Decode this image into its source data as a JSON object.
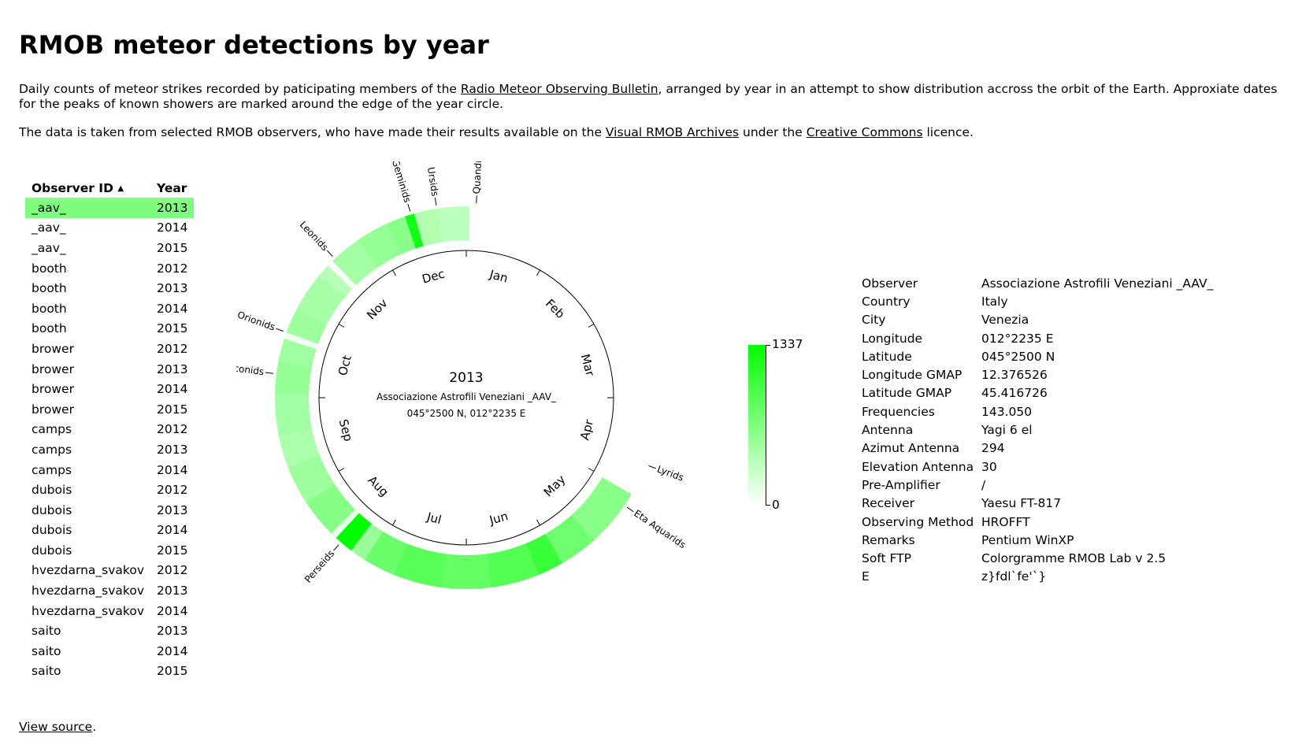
{
  "title": "RMOB meteor detections by year",
  "intro": {
    "p1_before": "Daily counts of meteor strikes recorded by paticipating members of the ",
    "p1_link": "Radio Meteor Observing Bulletin",
    "p1_after": ", arranged by year in an attempt to show distribution accross the orbit of the Earth. Approxiate dates for the peaks of known showers are marked around the edge of the year circle.",
    "p2_before": "The data is taken from selected RMOB observers, who have made their results available on the ",
    "p2_link1": "Visual RMOB Archives",
    "p2_mid": " under the ",
    "p2_link2": "Creative Commons",
    "p2_after": " licence."
  },
  "table": {
    "header_observer": "Observer ID",
    "sort_indicator": "▲",
    "header_year": "Year",
    "rows": [
      {
        "observer": "_aav_",
        "year": "2013",
        "selected": true
      },
      {
        "observer": "_aav_",
        "year": "2014"
      },
      {
        "observer": "_aav_",
        "year": "2015"
      },
      {
        "observer": "booth",
        "year": "2012"
      },
      {
        "observer": "booth",
        "year": "2013"
      },
      {
        "observer": "booth",
        "year": "2014"
      },
      {
        "observer": "booth",
        "year": "2015"
      },
      {
        "observer": "brower",
        "year": "2012"
      },
      {
        "observer": "brower",
        "year": "2013"
      },
      {
        "observer": "brower",
        "year": "2014"
      },
      {
        "observer": "brower",
        "year": "2015"
      },
      {
        "observer": "camps",
        "year": "2012"
      },
      {
        "observer": "camps",
        "year": "2013"
      },
      {
        "observer": "camps",
        "year": "2014"
      },
      {
        "observer": "dubois",
        "year": "2012"
      },
      {
        "observer": "dubois",
        "year": "2013"
      },
      {
        "observer": "dubois",
        "year": "2014"
      },
      {
        "observer": "dubois",
        "year": "2015"
      },
      {
        "observer": "hvezdarna_svakov",
        "year": "2012"
      },
      {
        "observer": "hvezdarna_svakov",
        "year": "2013"
      },
      {
        "observer": "hvezdarna_svakov",
        "year": "2014"
      },
      {
        "observer": "saito",
        "year": "2013"
      },
      {
        "observer": "saito",
        "year": "2014"
      },
      {
        "observer": "saito",
        "year": "2015"
      }
    ]
  },
  "chart": {
    "center_year": "2013",
    "center_name": "Associazione Astrofili Veneziani _AAV_",
    "center_coords": "045°2500 N, 012°2235 E",
    "months": [
      "Jan",
      "Feb",
      "Mar",
      "Apr",
      "May",
      "Jun",
      "Jul",
      "Aug",
      "Sep",
      "Oct",
      "Nov",
      "Dec"
    ],
    "showers": [
      {
        "name": "Quandrani",
        "day": 3
      },
      {
        "name": "Lyrids",
        "day": 112
      },
      {
        "name": "Eta Aquarids",
        "day": 126
      },
      {
        "name": "Perseids",
        "day": 224
      },
      {
        "name": "Draconids",
        "day": 281
      },
      {
        "name": "Orionids",
        "day": 294
      },
      {
        "name": "Leonids",
        "day": 321
      },
      {
        "name": "Geminids",
        "day": 348
      },
      {
        "name": "Ursids",
        "day": 356
      }
    ],
    "color_max": "#00ff00",
    "color_min": "#ffffff"
  },
  "chart_data": {
    "type": "heatmap",
    "title": "2013",
    "data_range": [
      122,
      366
    ],
    "segments": [
      {
        "start": 122,
        "end": 140,
        "value": 620
      },
      {
        "start": 140,
        "end": 152,
        "value": 760
      },
      {
        "start": 152,
        "end": 160,
        "value": 1050
      },
      {
        "start": 160,
        "end": 175,
        "value": 900
      },
      {
        "start": 175,
        "end": 190,
        "value": 820
      },
      {
        "start": 190,
        "end": 205,
        "value": 880
      },
      {
        "start": 205,
        "end": 215,
        "value": 780
      },
      {
        "start": 215,
        "end": 220,
        "value": 540
      },
      {
        "start": 220,
        "end": 226,
        "value": 1337
      },
      {
        "start": 226,
        "end": 228,
        "value": 120
      },
      {
        "start": 228,
        "end": 240,
        "value": 640
      },
      {
        "start": 240,
        "end": 252,
        "value": 520
      },
      {
        "start": 252,
        "end": 262,
        "value": 440
      },
      {
        "start": 262,
        "end": 275,
        "value": 480
      },
      {
        "start": 275,
        "end": 285,
        "value": 560
      },
      {
        "start": 285,
        "end": 292,
        "value": 500
      },
      {
        "start": 292,
        "end": 294,
        "value": 80
      },
      {
        "start": 294,
        "end": 302,
        "value": 520
      },
      {
        "start": 302,
        "end": 314,
        "value": 460
      },
      {
        "start": 314,
        "end": 318,
        "value": 380
      },
      {
        "start": 318,
        "end": 320,
        "value": 40
      },
      {
        "start": 320,
        "end": 330,
        "value": 480
      },
      {
        "start": 330,
        "end": 340,
        "value": 560
      },
      {
        "start": 340,
        "end": 346,
        "value": 620
      },
      {
        "start": 346,
        "end": 349,
        "value": 1250
      },
      {
        "start": 349,
        "end": 356,
        "value": 420
      },
      {
        "start": 356,
        "end": 366,
        "value": 360
      }
    ],
    "legend_max": "1337",
    "legend_min": "0"
  },
  "info": [
    {
      "key": "Observer",
      "value": "Associazione Astrofili Veneziani _AAV_"
    },
    {
      "key": "Country",
      "value": "Italy"
    },
    {
      "key": "City",
      "value": "Venezia"
    },
    {
      "key": "Longitude",
      "value": "012°2235 E"
    },
    {
      "key": "Latitude",
      "value": "045°2500 N"
    },
    {
      "key": "Longitude GMAP",
      "value": "12.376526"
    },
    {
      "key": "Latitude GMAP",
      "value": "45.416726"
    },
    {
      "key": "Frequencies",
      "value": "143.050"
    },
    {
      "key": "Antenna",
      "value": "Yagi 6 el"
    },
    {
      "key": "Azimut Antenna",
      "value": "294"
    },
    {
      "key": "Elevation Antenna",
      "value": "30"
    },
    {
      "key": "Pre-Amplifier",
      "value": "/"
    },
    {
      "key": "Receiver",
      "value": "Yaesu FT-817"
    },
    {
      "key": "Observing Method",
      "value": "HROFFT"
    },
    {
      "key": "Remarks",
      "value": "Pentium WinXP"
    },
    {
      "key": "Soft FTP",
      "value": "Colorgramme RMOB Lab v 2.5"
    },
    {
      "key": "E",
      "value": "z}fdl`fe'`}"
    }
  ],
  "footer": {
    "link": "View source",
    "after": "."
  }
}
